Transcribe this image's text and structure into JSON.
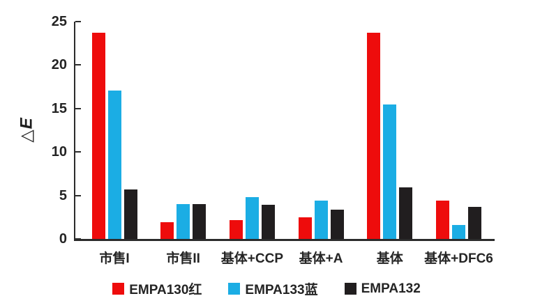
{
  "chart_data": {
    "type": "bar",
    "title": "",
    "xlabel": "",
    "ylabel": "△E",
    "ylim": [
      0,
      25
    ],
    "yticks": [
      0,
      5,
      10,
      15,
      20,
      25
    ],
    "grid": false,
    "legend_position": "bottom-center",
    "categories": [
      "市售I",
      "市售II",
      "基体+CCP",
      "基体+A",
      "基体",
      "基体+DFC6"
    ],
    "series": [
      {
        "name": "EMPA130红",
        "color": "#ee0c0c",
        "values": [
          23.7,
          1.9,
          2.2,
          2.5,
          23.7,
          4.4
        ]
      },
      {
        "name": "EMPA133蓝",
        "color": "#1bade4",
        "values": [
          17.1,
          4.0,
          4.8,
          4.4,
          15.5,
          1.6
        ]
      },
      {
        "name": "EMPA132",
        "color": "#211e1f",
        "values": [
          5.7,
          4.0,
          3.9,
          3.4,
          5.9,
          3.7
        ]
      }
    ],
    "colors": {
      "axis": "#2b2b2b",
      "text": "#242424",
      "background": "#ffffff"
    }
  }
}
